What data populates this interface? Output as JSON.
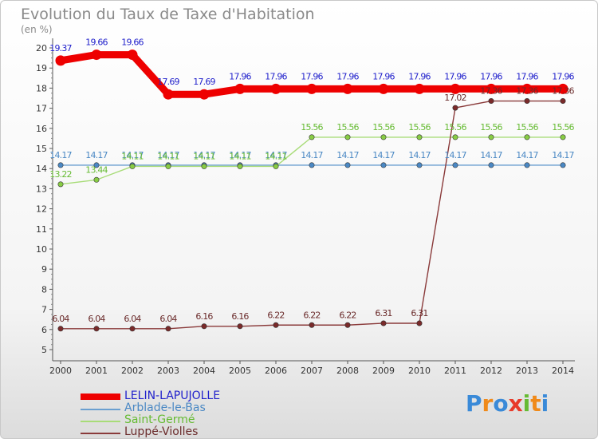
{
  "chart_data": {
    "type": "line",
    "title": "Evolution du Taux de Taxe d'Habitation",
    "subtitle": "(en %)",
    "ylim": [
      5,
      20
    ],
    "y_ticks": [
      5,
      6,
      7,
      8,
      9,
      10,
      11,
      12,
      13,
      14,
      15,
      16,
      17,
      18,
      19,
      20
    ],
    "x": [
      "2000",
      "2001",
      "2002",
      "2003",
      "2004",
      "2005",
      "2006",
      "2007",
      "2008",
      "2009",
      "2010",
      "2011",
      "2012",
      "2013",
      "2014"
    ],
    "series": [
      {
        "name": "LELIN-LAPUJOLLE",
        "color": "#ee0000",
        "line_color": "#ee0000",
        "text_color": "#2222cc",
        "emphasis": true,
        "values": [
          19.37,
          19.66,
          19.66,
          17.69,
          17.69,
          17.96,
          17.96,
          17.96,
          17.96,
          17.96,
          17.96,
          17.96,
          17.96,
          17.96,
          17.96
        ],
        "labels": [
          "19.37",
          "19.66",
          "19.66",
          "17.69",
          "17.69",
          "17.96",
          "17.96",
          "17.96",
          "17.96",
          "17.96",
          "17.96",
          "17.96",
          "17.96",
          "17.96",
          "17.96"
        ]
      },
      {
        "name": "Arblade-le-Bas",
        "color": "#4a88c4",
        "line_color": "#6a9fd0",
        "text_color": "#4a88c4",
        "values": [
          14.17,
          14.17,
          14.17,
          14.17,
          14.17,
          14.17,
          14.17,
          14.17,
          14.17,
          14.17,
          14.17,
          14.17,
          14.17,
          14.17,
          14.17
        ],
        "labels": [
          "14.17",
          "14.17",
          "14.17",
          "14.17",
          "14.17",
          "14.17",
          "14.17",
          "14.17",
          "14.17",
          "14.17",
          "14.17",
          "14.17",
          "14.17",
          "14.17",
          "14.17"
        ]
      },
      {
        "name": "Saint-Germé",
        "color": "#88cc44",
        "line_color": "#a8dc78",
        "text_color": "#66bb33",
        "values": [
          13.22,
          13.44,
          14.11,
          14.11,
          14.11,
          14.11,
          14.11,
          15.56,
          15.56,
          15.56,
          15.56,
          15.56,
          15.56,
          15.56,
          15.56
        ],
        "labels": [
          "13.22",
          "13.44",
          "14.11",
          "14.11",
          "14.11",
          "14.11",
          "14.11",
          "15.56",
          "15.56",
          "15.56",
          "15.56",
          "15.56",
          "15.56",
          "15.56",
          "15.56"
        ]
      },
      {
        "name": "Luppé-Violles",
        "color": "#7a2a2a",
        "line_color": "#8a3a3a",
        "text_color": "#6a2a2a",
        "values": [
          6.04,
          6.04,
          6.04,
          6.04,
          6.16,
          6.16,
          6.22,
          6.22,
          6.22,
          6.31,
          6.31,
          17.02,
          17.36,
          17.36,
          17.36
        ],
        "labels": [
          "6.04",
          "6.04",
          "6.04",
          "6.04",
          "6.16",
          "6.16",
          "6.22",
          "6.22",
          "6.22",
          "6.31",
          "6.31",
          "17.02",
          "17.36",
          "17.36",
          "17.36"
        ]
      }
    ]
  },
  "brand": {
    "letters": [
      "P",
      "r",
      "o",
      "x",
      "i",
      "t",
      "i"
    ],
    "colors": [
      "#3a8ad8",
      "#f08a1a",
      "#3a8ad8",
      "#e83a2a",
      "#66bb33",
      "#f08a1a",
      "#3a8ad8"
    ]
  }
}
